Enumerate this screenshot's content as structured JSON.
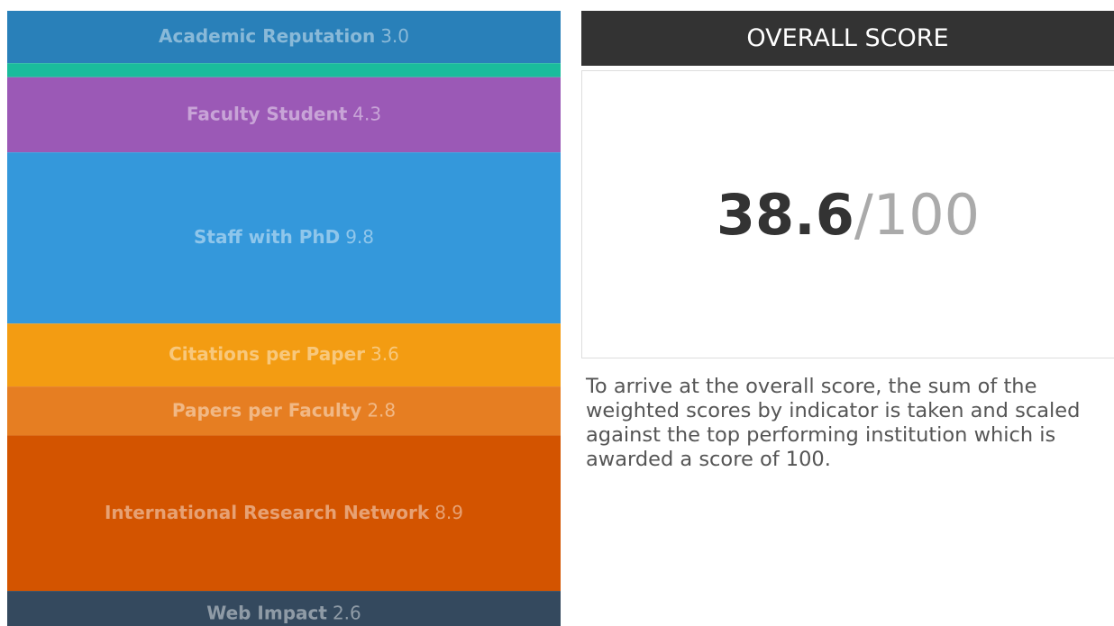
{
  "chart_data": {
    "type": "stacked_bar",
    "categories": [
      "Academic Reputation",
      null,
      "Faculty Student",
      "Staff with PhD",
      "Citations per Paper",
      "Papers per Faculty",
      "International Research Network",
      "Web Impact"
    ],
    "values": [
      3.0,
      0.8,
      4.3,
      9.8,
      3.6,
      2.8,
      8.9,
      2.6
    ],
    "value_labels": [
      "3.0",
      null,
      "4.3",
      "9.8",
      "3.6",
      "2.8",
      "8.9",
      "2.6"
    ],
    "colors": [
      "#2980b9",
      "#1abc9c",
      "#9b59b6",
      "#3498db",
      "#f39c12",
      "#e67e22",
      "#d35400",
      "#34495e"
    ]
  },
  "panel": {
    "header": "OVERALL SCORE",
    "score": "38.6",
    "out_of": "/100",
    "description": "To arrive at the overall score, the sum of the weighted scores by indicator is taken and scaled against the top performing institution which is awarded a score of 100."
  }
}
